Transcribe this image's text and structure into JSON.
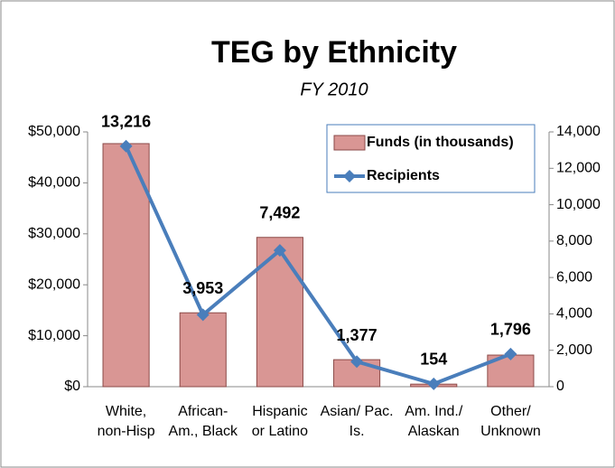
{
  "chart_data": {
    "type": "combo",
    "title": "TEG by Ethnicity",
    "subtitle": "FY 2010",
    "categories": [
      "White,\nnon-Hisp",
      "African-\nAm., Black",
      "Hispanic\nor Latino",
      "Asian/ Pac.\nIs.",
      "Am. Ind./\nAlaskan",
      "Other/\nUnknown"
    ],
    "series": [
      {
        "name": "Funds (in thousands)",
        "type": "bar",
        "color": "#d99694",
        "values": [
          47700,
          14500,
          29300,
          5300,
          500,
          6200
        ]
      },
      {
        "name": "Recipients",
        "type": "line",
        "axis": "y2",
        "color": "#4a7ebb",
        "values": [
          13216,
          3953,
          7492,
          1377,
          154,
          1796
        ],
        "value_labels": [
          "13,216",
          "3,953",
          "7,492",
          "1,377",
          "154",
          "1,796"
        ]
      }
    ],
    "ylim": [
      0,
      50000
    ],
    "yticks": [
      {
        "value": 0,
        "label": "$0"
      },
      {
        "value": 10000,
        "label": "$10,000"
      },
      {
        "value": 20000,
        "label": "$20,000"
      },
      {
        "value": 30000,
        "label": "$30,000"
      },
      {
        "value": 40000,
        "label": "$40,000"
      },
      {
        "value": 50000,
        "label": "$50,000"
      }
    ],
    "y2lim": [
      0,
      14000
    ],
    "y2ticks": [
      0,
      {
        "value": 2000,
        "label": "2,000"
      },
      {
        "value": 4000,
        "label": "4,000"
      },
      {
        "value": 6000,
        "label": "6,000"
      },
      {
        "value": 8000,
        "label": "8,000"
      },
      {
        "value": 10000,
        "label": "10,000"
      },
      {
        "value": 12000,
        "label": "12,000"
      },
      {
        "value": 14000,
        "label": "14,000"
      }
    ],
    "legend": "top-right"
  }
}
